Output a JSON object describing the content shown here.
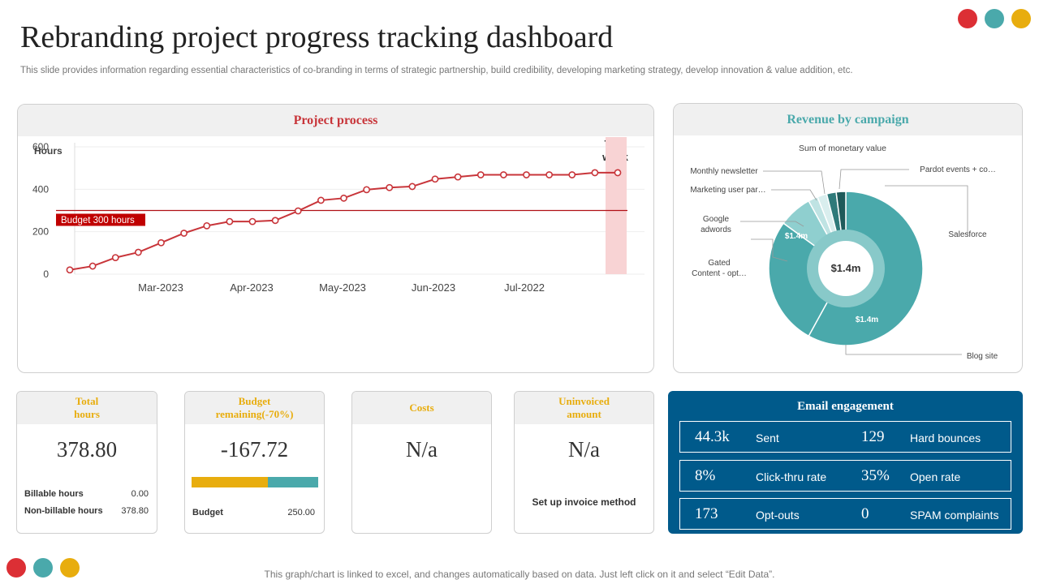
{
  "header": {
    "title": "Rebranding project progress tracking dashboard",
    "subtitle": "This slide provides information regarding essential characteristics of co-branding in terms of strategic partnership, build credibility, developing marketing strategy, develop innovation & value addition, etc."
  },
  "colors": {
    "red": "#dc2f35",
    "teal": "#4aa9ab",
    "yellow": "#e8ad0e",
    "navy": "#005a8b",
    "line": "#c8353a"
  },
  "project_panel": {
    "title": "Project process",
    "this_week_label": "This week",
    "budget_label": "Budget 300 hours"
  },
  "revenue_panel": {
    "title": "Revenue by campaign",
    "labels": {
      "sum": "Sum of monetary value",
      "monthly_newsletter": "Monthly newsletter",
      "marketing_user": "Marketing user par…",
      "google_adwords": "Google adwords",
      "gated_content": "Gated Content - opt…",
      "pardot": "Pardot events + co…",
      "salesforce": "Salesforce",
      "blog_site": "Blog site"
    },
    "values": {
      "center": "$1.4m",
      "google_slice": "$1.4m",
      "blog_slice": "$1.4m"
    }
  },
  "chart_data": [
    {
      "type": "line",
      "ylabel": "Hours",
      "ylim": [
        0,
        600
      ],
      "yticks": [
        0,
        200,
        400,
        600
      ],
      "xtick_labels": [
        "Mar-2023",
        "Apr-2023",
        "May-2023",
        "Jun-2023",
        "Jul-2022"
      ],
      "series": [
        {
          "values": [
            20,
            38,
            78,
            103,
            148,
            193,
            228,
            248,
            248,
            253,
            298,
            348,
            358,
            398,
            408,
            413,
            448,
            458,
            468,
            468,
            468,
            468,
            468,
            478,
            478
          ]
        }
      ],
      "budget_line": 300,
      "highlight": "This week"
    },
    {
      "type": "pie",
      "title": "Sum of monetary value",
      "categories": [
        "Blog site",
        "Gated Content - opt…",
        "Google adwords",
        "Marketing user par…",
        "Monthly newsletter",
        "Pardot events + co…",
        "Salesforce"
      ],
      "slices": [
        {
          "name": "Blog site",
          "pct": 0.58,
          "color": "#4aa9ab"
        },
        {
          "name": "Gated Content - opt…",
          "pct": 0.27,
          "color": "#4aa9ab"
        },
        {
          "name": "Google adwords",
          "pct": 0.07,
          "color": "#8fcfcf"
        },
        {
          "name": "Marketing user par…",
          "pct": 0.02,
          "color": "#bfe3e3"
        },
        {
          "name": "Monthly newsletter",
          "pct": 0.02,
          "color": "#d9eeee"
        },
        {
          "name": "Pardot events + co…",
          "pct": 0.02,
          "color": "#2f7a7a"
        },
        {
          "name": "Salesforce",
          "pct": 0.02,
          "color": "#1f5a5a"
        }
      ]
    }
  ],
  "kpis": {
    "total_hours": {
      "title": "Total hours",
      "value": "378.80",
      "rows": [
        {
          "label": "Billable hours",
          "value": "0.00"
        },
        {
          "label": "Non-billable hours",
          "value": "378.80"
        }
      ]
    },
    "budget_remaining": {
      "title": "Budget remaining(-70%)",
      "value": "-167.72",
      "bar_yellow_fraction": 0.6,
      "budget_label": "Budget",
      "budget_value": "250.00"
    },
    "costs": {
      "title": "Costs",
      "value": "N/a"
    },
    "uninvoiced": {
      "title": "Uninvoiced amount",
      "value": "N/a",
      "note": "Set up invoice method"
    }
  },
  "email": {
    "title": "Email engagement",
    "rows": [
      {
        "n1": "44.3k",
        "l1": "Sent",
        "n2": "129",
        "l2": "Hard bounces"
      },
      {
        "n1": "8%",
        "l1": "Click-thru rate",
        "n2": "35%",
        "l2": "Open rate"
      },
      {
        "n1": "173",
        "l1": "Opt-outs",
        "n2": "0",
        "l2": "SPAM complaints"
      }
    ]
  },
  "footer": "This graph/chart is linked to excel,  and changes automatically based on data. Just left click on it and select “Edit Data”."
}
